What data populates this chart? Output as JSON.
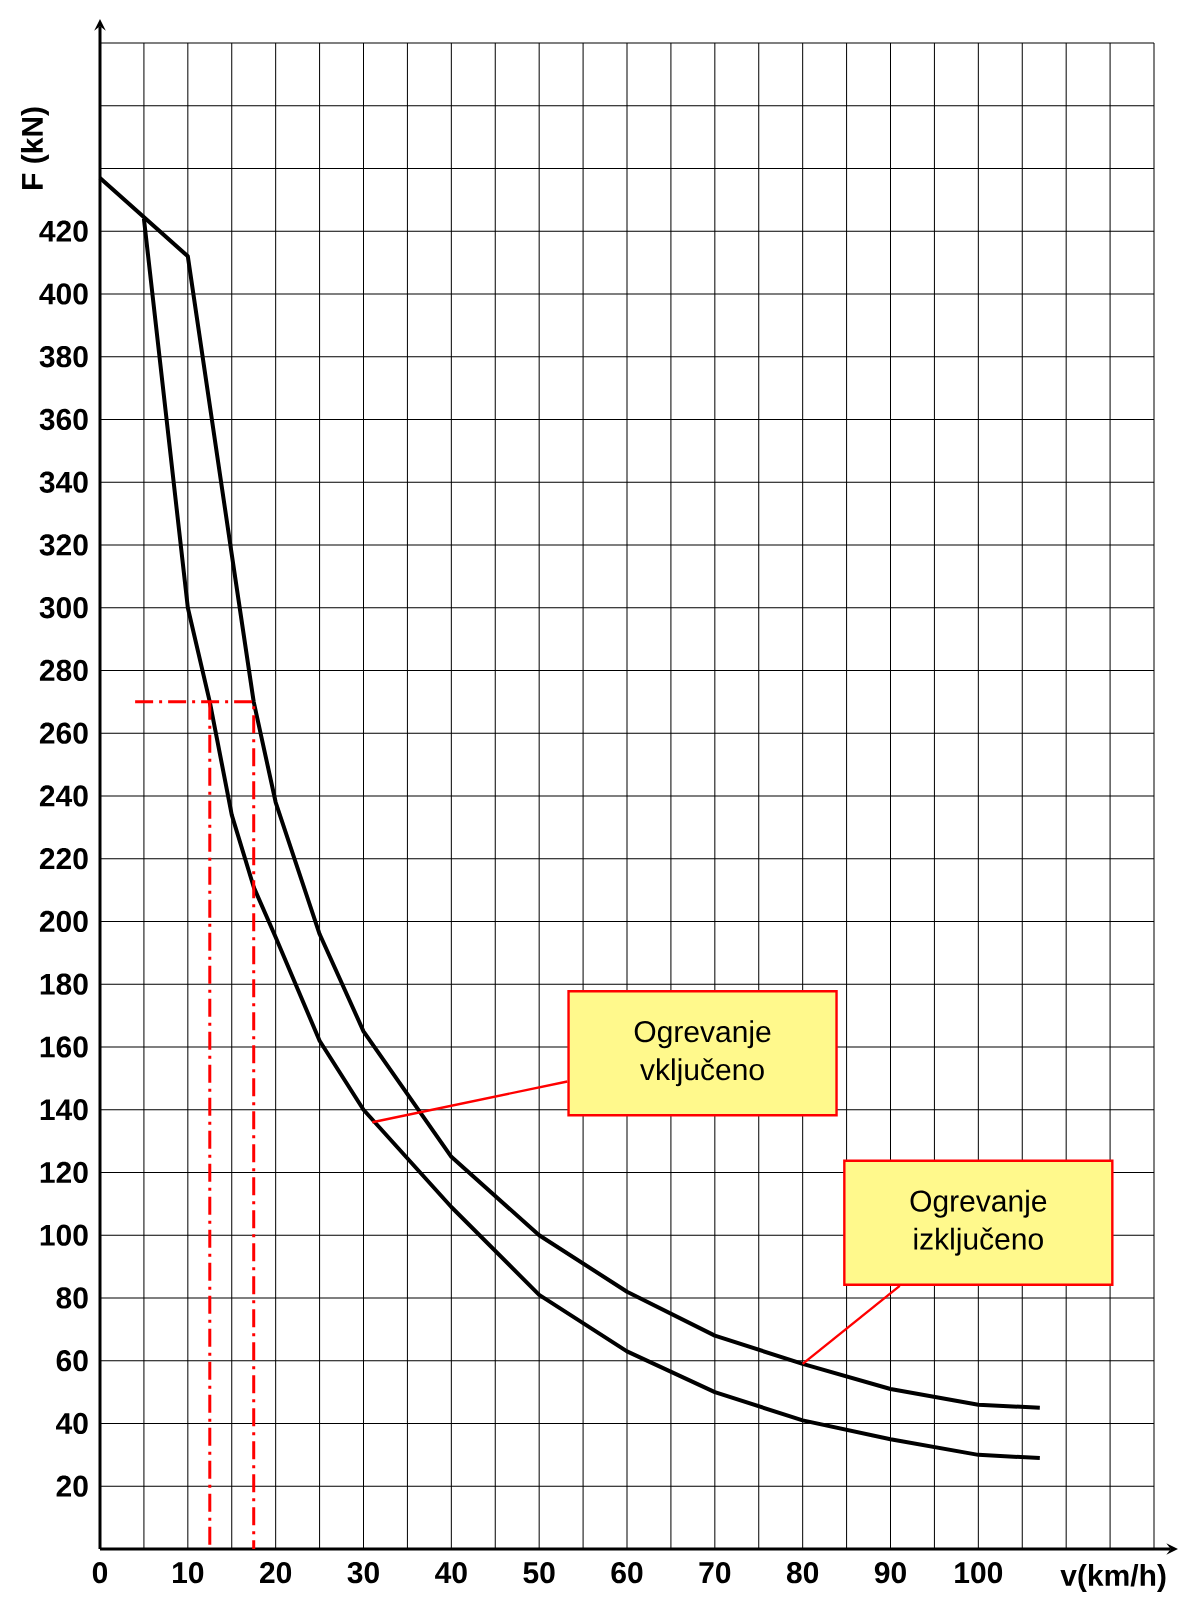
{
  "chart_data": {
    "type": "line",
    "xlabel": "v(km/h)",
    "ylabel": "F (kN)",
    "xlim": [
      0,
      120
    ],
    "ylim": [
      0,
      480
    ],
    "xticks": [
      0,
      {
        "value": 5,
        "label": null
      },
      10,
      {
        "value": 15,
        "label": null
      },
      20,
      {
        "value": 25,
        "label": null
      },
      30,
      {
        "value": 35,
        "label": null
      },
      40,
      {
        "value": 45,
        "label": null
      },
      50,
      {
        "value": 55,
        "label": null
      },
      60,
      {
        "value": 65,
        "label": null
      },
      70,
      {
        "value": 75,
        "label": null
      },
      80,
      {
        "value": 85,
        "label": null
      },
      90,
      {
        "value": 95,
        "label": null
      },
      100,
      {
        "value": 105,
        "label": null
      },
      {
        "value": 110,
        "label": null
      },
      {
        "value": 115,
        "label": null
      },
      {
        "value": 120,
        "label": null
      }
    ],
    "yticks": [
      20,
      40,
      60,
      80,
      100,
      120,
      140,
      160,
      180,
      200,
      220,
      240,
      260,
      280,
      300,
      320,
      340,
      360,
      380,
      400,
      420,
      {
        "value": 440,
        "label": null
      },
      {
        "value": 460,
        "label": null
      },
      {
        "value": 480,
        "label": null
      }
    ],
    "grid": true,
    "marker": "none",
    "series": [
      {
        "color": "#000000",
        "line_style": "solid",
        "x": [
          0,
          10,
          15,
          17.5,
          20,
          25,
          30,
          40,
          50,
          60,
          70,
          80,
          90,
          100,
          107
        ],
        "values": [
          437,
          412,
          317,
          270,
          238,
          196,
          165,
          125,
          100,
          82,
          68,
          59,
          51,
          46,
          45
        ]
      },
      {
        "color": "#000000",
        "line_style": "solid",
        "x": [
          5,
          10,
          12.5,
          15,
          17.5,
          20,
          25,
          30,
          40,
          50,
          60,
          70,
          80,
          90,
          100,
          107
        ],
        "values": [
          424,
          300,
          270,
          234,
          211,
          195,
          162,
          140,
          109,
          81,
          63,
          50,
          41,
          35,
          30,
          29
        ]
      },
      {
        "color": "#ff0000",
        "line_style": "dashed",
        "x": [
          4,
          17.5,
          17.5
        ],
        "values": [
          270,
          270,
          0
        ]
      },
      {
        "color": "#ff0000",
        "line_style": "dashed",
        "x": [
          12.5,
          12.5
        ],
        "values": [
          270,
          0
        ]
      }
    ],
    "annotations": [
      "Ogrevanje vključeno",
      {
        "text": "Ogrevanje izključeno",
        "x": 80,
        "y": 59
      }
    ]
  }
}
